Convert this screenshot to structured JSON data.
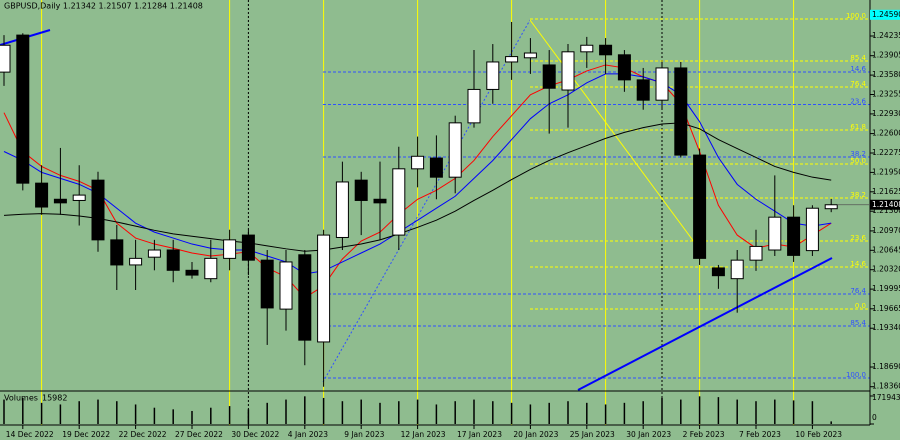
{
  "chart_data": {
    "type": "candlestick",
    "title": "GBPUSD,Daily  1.21342 1.21507 1.21284 1.21408",
    "categories": [
      null,
      "14 Dec 2022",
      null,
      null,
      "19 Dec 2022",
      null,
      null,
      "22 Dec 2022",
      null,
      null,
      "27 Dec 2022",
      null,
      null,
      "30 Dec 2022",
      null,
      null,
      "4 Jan 2023",
      null,
      null,
      "9 Jan 2023",
      null,
      null,
      "12 Jan 2023",
      null,
      null,
      "17 Jan 2023",
      null,
      null,
      "20 Jan 2023",
      null,
      null,
      "25 Jan 2023",
      null,
      null,
      "30 Jan 2023",
      null,
      null,
      "2 Feb 2023",
      null,
      null,
      "7 Feb 2023",
      null,
      null,
      "10 Feb 2023",
      null
    ],
    "open": [
      1.2363,
      1.2425,
      1.2177,
      1.215,
      1.2148,
      1.2182,
      1.2082,
      1.204,
      1.2053,
      1.2065,
      1.2031,
      1.2017,
      1.2051,
      1.209,
      1.2048,
      1.1966,
      1.2057,
      1.1911,
      1.2086,
      1.2182,
      1.215,
      1.209,
      1.2201,
      1.2219,
      1.2187,
      1.2278,
      1.2334,
      1.238,
      1.2387,
      1.2375,
      1.2333,
      1.2397,
      1.2408,
      1.2392,
      1.235,
      1.2316,
      1.237,
      1.2224,
      1.2035,
      1.2017,
      1.2048,
      1.2065,
      1.212,
      1.2064,
      1.21342
    ],
    "high": [
      1.2425,
      1.2428,
      1.2207,
      1.2236,
      1.2207,
      1.2196,
      1.2107,
      1.2082,
      1.2082,
      1.2082,
      1.2045,
      1.2082,
      1.2099,
      1.2099,
      1.2065,
      1.2065,
      1.2065,
      1.2099,
      1.2213,
      1.2196,
      1.2213,
      1.2238,
      1.2255,
      1.2257,
      1.229,
      1.24,
      1.241,
      1.2447,
      1.242,
      1.24,
      1.241,
      1.2422,
      1.242,
      1.24,
      1.237,
      1.238,
      1.238,
      1.2235,
      1.204,
      1.2065,
      1.2099,
      1.219,
      1.214,
      1.214,
      1.21507
    ],
    "low": [
      1.234,
      1.2165,
      1.2124,
      1.2124,
      1.2106,
      1.2062,
      1.1998,
      1.1998,
      1.2031,
      1.2011,
      1.2017,
      1.2011,
      1.2031,
      1.2023,
      1.1906,
      1.193,
      1.1872,
      1.1836,
      1.2065,
      1.209,
      1.2082,
      1.2065,
      1.217,
      1.215,
      1.216,
      1.227,
      1.231,
      1.235,
      1.236,
      1.226,
      1.227,
      1.237,
      1.236,
      1.233,
      1.23,
      1.23,
      1.222,
      1.204,
      1.2,
      1.196,
      1.203,
      1.2055,
      1.2045,
      1.2055,
      1.21284
    ],
    "close": [
      1.2408,
      1.2177,
      1.2137,
      1.2144,
      1.2157,
      1.2082,
      1.204,
      1.2051,
      1.2065,
      1.2031,
      1.2023,
      1.2051,
      1.2082,
      1.2048,
      1.1968,
      1.2045,
      1.1914,
      1.209,
      1.2179,
      1.2148,
      1.2144,
      1.2201,
      1.2222,
      1.2187,
      1.2278,
      1.2334,
      1.238,
      1.2389,
      1.2395,
      1.2336,
      1.2397,
      1.2408,
      1.2392,
      1.235,
      1.2316,
      1.237,
      1.2224,
      1.2051,
      1.2022,
      1.2048,
      1.2071,
      1.212,
      1.2056,
      1.2135,
      1.21408
    ],
    "up_color": "#ffffff",
    "down_color": "#000000",
    "lines": [
      {
        "color": "#ff0000",
        "values": [
          1.2295,
          1.223,
          1.2205,
          1.219,
          1.218,
          1.2165,
          1.211,
          1.2085,
          1.2075,
          1.2068,
          1.206,
          1.2055,
          1.2058,
          1.2062,
          1.2035,
          1.202,
          1.1985,
          1.2005,
          1.205,
          1.208,
          1.2095,
          1.2125,
          1.215,
          1.2165,
          1.2185,
          1.2215,
          1.2255,
          1.229,
          1.2325,
          1.234,
          1.235,
          1.2365,
          1.2375,
          1.237,
          1.2355,
          1.2345,
          1.231,
          1.223,
          1.214,
          1.209,
          1.2068,
          1.2075,
          1.207,
          1.209,
          1.211
        ]
      },
      {
        "color": "#0000ff",
        "values": [
          1.223,
          1.2215,
          1.2195,
          1.2185,
          1.2175,
          1.216,
          1.2135,
          1.211,
          1.2095,
          1.2085,
          1.2075,
          1.2068,
          1.2065,
          1.2065,
          1.2055,
          1.2045,
          1.2025,
          1.203,
          1.2045,
          1.206,
          1.2075,
          1.2095,
          1.2115,
          1.2135,
          1.2155,
          1.2185,
          1.2215,
          1.225,
          1.2285,
          1.231,
          1.2325,
          1.2345,
          1.236,
          1.236,
          1.2355,
          1.2345,
          1.2325,
          1.228,
          1.222,
          1.2175,
          1.215,
          1.213,
          1.211,
          1.2105,
          1.211
        ]
      },
      {
        "color": "#000000",
        "values": [
          1.2123,
          1.2125,
          1.2126,
          1.2125,
          1.2122,
          1.2118,
          1.2112,
          1.2105,
          1.2098,
          1.2092,
          1.2088,
          1.2084,
          1.208,
          1.2077,
          1.2072,
          1.2067,
          1.2063,
          1.2065,
          1.207,
          1.2075,
          1.2082,
          1.2092,
          1.2103,
          1.2115,
          1.213,
          1.2148,
          1.2165,
          1.2183,
          1.22,
          1.2215,
          1.2228,
          1.224,
          1.2252,
          1.2262,
          1.227,
          1.2276,
          1.2278,
          1.2268,
          1.225,
          1.2235,
          1.222,
          1.2205,
          1.2195,
          1.2187,
          1.2182
        ]
      }
    ],
    "fib_levels": [
      {
        "label": "100.0",
        "value": 1.2452,
        "color": "#ffff00"
      },
      {
        "label": "85.4",
        "value": 1.23816,
        "color": "#ffff00"
      },
      {
        "label": "76.4",
        "value": 1.23381,
        "color": "#ffff00"
      },
      {
        "label": "61.8",
        "value": 1.2266,
        "color": "#ffff00"
      },
      {
        "label": "50.0",
        "value": 1.22091,
        "color": "#ffff00"
      },
      {
        "label": "38.2",
        "value": 1.21522,
        "color": "#ffff00"
      },
      {
        "label": "23.6",
        "value": 1.20801,
        "color": "#ffff00"
      },
      {
        "label": "14.6",
        "value": 1.20366,
        "color": "#ffff00"
      },
      {
        "label": "0.0",
        "value": 1.19662,
        "color": "#ffff00"
      },
      {
        "label": "14.6",
        "value": 1.23632,
        "color": "#3050ff"
      },
      {
        "label": "23.6",
        "value": 1.23088,
        "color": "#3050ff"
      },
      {
        "label": "38.2",
        "value": 1.22208,
        "color": "#3050ff"
      },
      {
        "label": "76.4",
        "value": 1.19913,
        "color": "#3050ff"
      },
      {
        "label": "85.4",
        "value": 1.19377,
        "color": "#3050ff"
      },
      {
        "label": "100.0",
        "value": 1.18506,
        "color": "#3050ff"
      }
    ],
    "price_marker": {
      "value": 1.2459,
      "label": "1.24590",
      "color": "#00ffff"
    },
    "ylim": [
      1.18305,
      1.24838
    ],
    "yticks": [
      1.24235,
      1.23905,
      {
        "value": 1.2358,
        "label": "1.23580"
      },
      1.23255,
      {
        "value": 1.2293,
        "label": "1.22930"
      },
      {
        "value": 1.226,
        "label": "1.22600"
      },
      1.22275,
      {
        "value": 1.2195,
        "label": "1.21950"
      },
      1.21625,
      {
        "value": 1.213,
        "label": "1.21300"
      },
      {
        "value": 1.2097,
        "label": "1.20970"
      },
      1.20645,
      {
        "value": 1.2032,
        "label": "1.20320"
      },
      1.19995,
      1.19665,
      {
        "value": 1.1934,
        "label": "1.19340"
      },
      {
        "value": 1.1869,
        "label": "1.18690"
      },
      {
        "value": 1.1836,
        "label": "1.18360"
      }
    ],
    "volume": {
      "label": "Volumes",
      "values": [
        150000,
        160000,
        130000,
        120000,
        140000,
        150000,
        140000,
        120000,
        100000,
        90000,
        80000,
        100000,
        110000,
        90000,
        130000,
        150000,
        170000,
        160000,
        140000,
        150000,
        130000,
        140000,
        150000,
        120000,
        140000,
        150000,
        140000,
        130000,
        120000,
        130000,
        140000,
        130000,
        120000,
        130000,
        140000,
        160000,
        150000,
        170000,
        165000,
        150000,
        140000,
        150000,
        145000,
        140000,
        15982
      ],
      "color": "#000000",
      "ylim": [
        0,
        171943
      ],
      "yticks": [
        171943,
        0
      ]
    }
  }
}
